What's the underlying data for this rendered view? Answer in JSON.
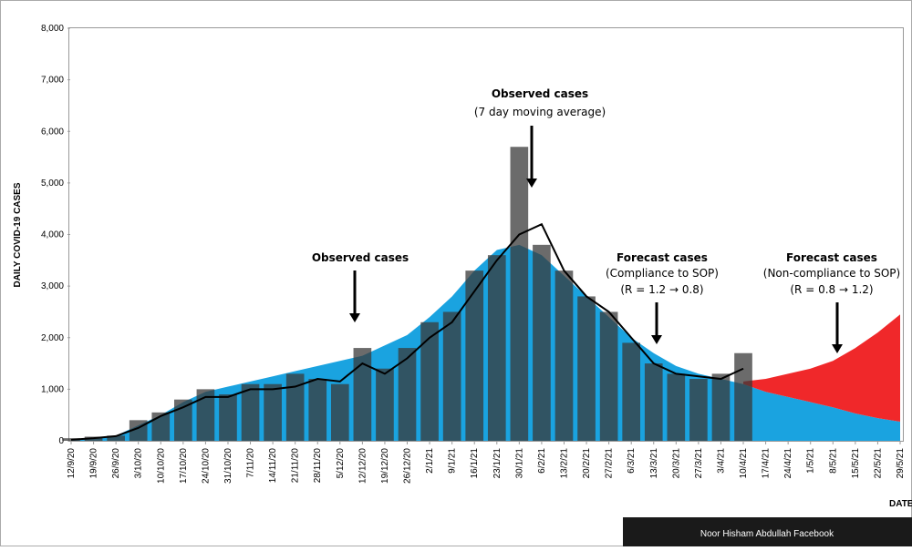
{
  "chart_data": {
    "type": "combo",
    "y_label": "DAILY COVID-19 CASES",
    "x_label": "DATE",
    "annotations": [
      "Observed cases",
      "Observed cases",
      "(7 day moving average)",
      "Forecast cases",
      "(Compliance to SOP)",
      "(R = 1.2 → 0.8)",
      "Forecast cases",
      "(Non-compliance to SOP)",
      "(R = 0.8 → 1.2)"
    ],
    "source": "Noor Hisham Abdullah Facebook",
    "categories": [
      "12/9/20",
      "19/9/20",
      "26/9/20",
      "3/10/20",
      "10/10/20",
      "17/10/20",
      "24/10/20",
      "31/10/20",
      "7/11/20",
      "14/11/20",
      "21/11/20",
      "28/11/20",
      "5/12/20",
      "12/12/20",
      "19/12/20",
      "26/12/20",
      "2/1/21",
      "9/1/21",
      "16/1/21",
      "23/1/21",
      "30/1/21",
      "6/2/21",
      "13/2/21",
      "20/2/21",
      "27/2/21",
      "6/3/21",
      "13/3/21",
      "20/3/21",
      "27/3/21",
      "3/4/21",
      "10/4/21",
      "17/4/21",
      "24/4/21",
      "1/5/21",
      "8/5/21",
      "15/5/21",
      "22/5/21",
      "29/5/21"
    ],
    "series": [
      {
        "name": "Forecast (compliance)",
        "type": "area",
        "color": "#1aa3e0",
        "values": [
          20,
          50,
          100,
          300,
          500,
          750,
          950,
          1050,
          1150,
          1250,
          1350,
          1450,
          1550,
          1650,
          1850,
          2050,
          2400,
          2800,
          3300,
          3700,
          3800,
          3600,
          3200,
          2800,
          2400,
          2000,
          1700,
          1450,
          1300,
          1200,
          1100,
          950,
          850,
          750,
          650,
          530,
          440,
          370
        ]
      },
      {
        "name": "Forecast (non-compliance)",
        "type": "area",
        "color": "#f0282a",
        "values": [
          null,
          null,
          null,
          null,
          null,
          null,
          null,
          null,
          null,
          null,
          null,
          null,
          null,
          null,
          null,
          null,
          null,
          null,
          null,
          null,
          null,
          null,
          null,
          null,
          null,
          null,
          null,
          null,
          null,
          null,
          1150,
          1200,
          1300,
          1400,
          1550,
          1800,
          2100,
          2450
        ]
      },
      {
        "name": "Observed cases",
        "type": "bar",
        "color": "#3a3a3a",
        "values": [
          50,
          80,
          100,
          400,
          550,
          800,
          1000,
          900,
          1100,
          1100,
          1300,
          1200,
          1100,
          1800,
          1400,
          1800,
          2300,
          2500,
          3300,
          3600,
          5700,
          3800,
          3300,
          2800,
          2500,
          1900,
          1500,
          1300,
          1200,
          1300,
          1700,
          null,
          null,
          null,
          null,
          null,
          null,
          null
        ]
      },
      {
        "name": "7 day moving average",
        "type": "line",
        "color": "#000000",
        "values": [
          20,
          50,
          90,
          250,
          480,
          650,
          850,
          850,
          1000,
          1000,
          1050,
          1200,
          1150,
          1500,
          1300,
          1600,
          2000,
          2300,
          2900,
          3500,
          4000,
          4200,
          3300,
          2800,
          2500,
          2000,
          1500,
          1300,
          1250,
          1200,
          1400,
          null,
          null,
          null,
          null,
          null,
          null,
          null
        ]
      }
    ],
    "ylim": [
      0,
      8000
    ],
    "yticks": [
      0,
      {
        "value": 1000,
        "label": "1,000"
      },
      {
        "value": 2000,
        "label": "2,000"
      },
      {
        "value": 3000,
        "label": "3,000"
      },
      {
        "value": 4000,
        "label": "4,000"
      },
      {
        "value": 5000,
        "label": "5,000"
      },
      {
        "value": 6000,
        "label": "6,000"
      },
      {
        "value": 7000,
        "label": "7,000"
      },
      {
        "value": 8000,
        "label": "8,000"
      }
    ]
  }
}
